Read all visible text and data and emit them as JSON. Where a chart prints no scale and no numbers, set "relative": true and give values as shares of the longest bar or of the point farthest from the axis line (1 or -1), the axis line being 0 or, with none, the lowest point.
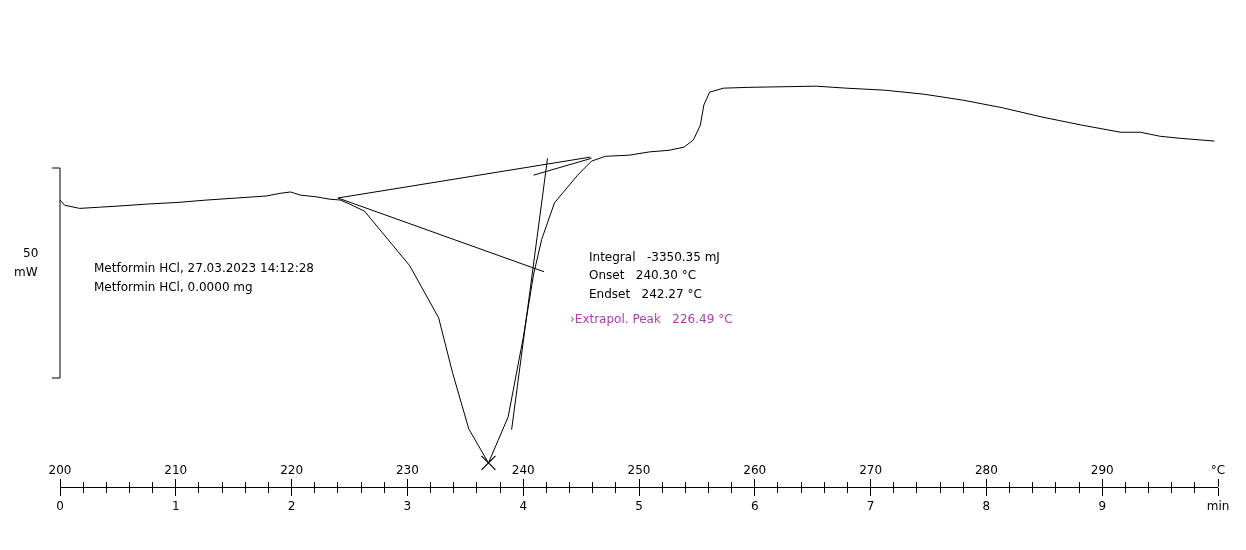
{
  "chart_data": {
    "type": "line",
    "relative": true,
    "line_style": "solid",
    "xlim": [
      200,
      300
    ],
    "xticks": [
      200,
      210,
      220,
      230,
      240,
      250,
      260,
      270,
      280,
      290,
      {
        "value": 300,
        "label": "°C"
      }
    ],
    "x2lim": [
      0,
      10
    ],
    "x2ticks": [
      0,
      1,
      2,
      3,
      4,
      5,
      6,
      7,
      8,
      9,
      {
        "value": 10,
        "label": "min"
      }
    ],
    "series": [
      {
        "color": "#000000",
        "marker": "none",
        "x": [
          200.0,
          200.4,
          201.7,
          203.4,
          205.1,
          207.6,
          210.2,
          212.7,
          215.3,
          217.8,
          219.1,
          219.9,
          220.8,
          222.1,
          223.3,
          224.2,
          225.0,
          226.3,
          230.2,
          232.7,
          233.9,
          235.3,
          237.0,
          238.7,
          240.0,
          240.9,
          241.6,
          242.7,
          244.7,
          245.9,
          247.1,
          249.2,
          250.9,
          252.6,
          253.9,
          254.7,
          255.3,
          255.6,
          256.1,
          257.3,
          259.4,
          265.3,
          267.9,
          271.2,
          274.6,
          278.0,
          281.4,
          284.8,
          288.2,
          291.6,
          293.3,
          295.0,
          296.7,
          299.7
        ],
        "values": [
          0.716,
          0.703,
          0.695,
          0.698,
          0.701,
          0.706,
          0.71,
          0.716,
          0.721,
          0.726,
          0.733,
          0.736,
          0.728,
          0.724,
          0.718,
          0.716,
          0.706,
          0.688,
          0.552,
          0.422,
          0.285,
          0.145,
          0.06,
          0.175,
          0.372,
          0.531,
          0.618,
          0.709,
          0.778,
          0.813,
          0.825,
          0.828,
          0.836,
          0.84,
          0.848,
          0.866,
          0.903,
          0.953,
          0.985,
          0.995,
          0.997,
          1.0,
          0.995,
          0.99,
          0.98,
          0.965,
          0.946,
          0.923,
          0.903,
          0.885,
          0.885,
          0.875,
          0.87,
          0.863
        ]
      },
      {
        "type": "line",
        "color": "#000000",
        "marker": "none",
        "x": [
          224.0,
          245.8
        ],
        "values": [
          0.721,
          0.823
        ]
      },
      {
        "type": "line",
        "color": "#000000",
        "marker": "none",
        "x": [
          224.0,
          241.8
        ],
        "values": [
          0.721,
          0.537
        ]
      },
      {
        "type": "line",
        "color": "#000000",
        "marker": "none",
        "x": [
          239.0,
          242.1
        ],
        "values": [
          0.143,
          0.82
        ]
      },
      {
        "type": "line",
        "color": "#000000",
        "marker": "none",
        "x": [
          240.9,
          245.9
        ],
        "values": [
          0.778,
          0.82
        ]
      },
      {
        "type": "scatter",
        "color": "#000000",
        "marker": "cross",
        "x": [
          237.0
        ],
        "values": [
          0.06
        ]
      }
    ],
    "annotations": [
      "50",
      "mW",
      "Metformin HCl, 27.03.2023 14:12:28",
      "Metformin HCl, 0.0000 mg",
      "Integral   -3350.35 mJ",
      "Onset   240.30 °C",
      "Endset   242.27 °C",
      "›Extrapol. Peak   226.49 °C"
    ]
  }
}
